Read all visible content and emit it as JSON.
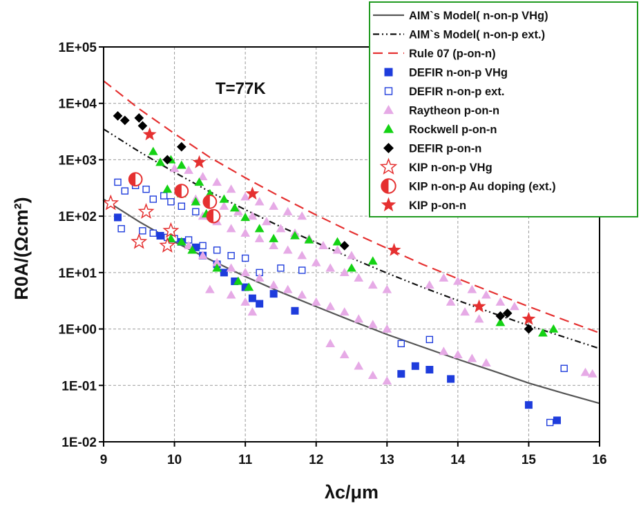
{
  "chart_data": {
    "type": "scatter",
    "title": "",
    "annotation": "T=77K",
    "xlabel": "λc/μm",
    "ylabel": "R0A/(Ωcm²)",
    "xlim": [
      9,
      16
    ],
    "ylim_log10": [
      -2,
      5
    ],
    "y_scale": "log",
    "grid": true,
    "legend_position": "top-right",
    "x_ticks": [
      "9",
      "10",
      "11",
      "12",
      "13",
      "14",
      "15",
      "16"
    ],
    "y_ticks": [
      "1E-02",
      "1E-01",
      "1E+00",
      "1E+01",
      "1E+02",
      "1E+03",
      "1E+04",
      "1E+05"
    ],
    "series": [
      {
        "name": "AIM`s Model( n-on-p VHg)",
        "kind": "line",
        "style": "solid",
        "color": "#555555",
        "points": [
          [
            9,
            200
          ],
          [
            9.5,
            80
          ],
          [
            10,
            35
          ],
          [
            10.5,
            17
          ],
          [
            11,
            8.5
          ],
          [
            11.5,
            4.5
          ],
          [
            12,
            2.5
          ],
          [
            12.5,
            1.4
          ],
          [
            13,
            0.8
          ],
          [
            13.5,
            0.48
          ],
          [
            14,
            0.29
          ],
          [
            14.5,
            0.18
          ],
          [
            15,
            0.11
          ],
          [
            15.5,
            0.072
          ],
          [
            16,
            0.048
          ]
        ]
      },
      {
        "name": "AIM`s Model( n-on-p ext.)",
        "kind": "line",
        "style": "dashdotdot",
        "color": "#111111",
        "points": [
          [
            9,
            3500
          ],
          [
            9.5,
            1400
          ],
          [
            10,
            600
          ],
          [
            10.5,
            270
          ],
          [
            11,
            130
          ],
          [
            11.5,
            65
          ],
          [
            12,
            34
          ],
          [
            12.5,
            18
          ],
          [
            13,
            9.8
          ],
          [
            13.5,
            5.5
          ],
          [
            14,
            3.2
          ],
          [
            14.5,
            1.9
          ],
          [
            15,
            1.15
          ],
          [
            15.5,
            0.72
          ],
          [
            16,
            0.45
          ]
        ]
      },
      {
        "name": "Rule 07 (p-on-n)",
        "kind": "line",
        "style": "dash",
        "color": "#e53030",
        "points": [
          [
            9,
            25000
          ],
          [
            9.5,
            8000
          ],
          [
            10,
            2900
          ],
          [
            10.5,
            1100
          ],
          [
            11,
            480
          ],
          [
            11.5,
            220
          ],
          [
            12,
            105
          ],
          [
            12.5,
            52
          ],
          [
            13,
            27
          ],
          [
            13.5,
            14
          ],
          [
            14,
            7.8
          ],
          [
            14.5,
            4.4
          ],
          [
            15,
            2.5
          ],
          [
            15.5,
            1.45
          ],
          [
            16,
            0.85
          ]
        ]
      },
      {
        "name": "DEFIR n-on-p VHg",
        "kind": "scatter",
        "marker": "square",
        "color": "#1e3cdc",
        "points": [
          [
            9.2,
            95
          ],
          [
            9.8,
            45
          ],
          [
            9.95,
            40
          ],
          [
            10.1,
            35
          ],
          [
            10.3,
            28
          ],
          [
            10.4,
            20
          ],
          [
            10.6,
            14
          ],
          [
            10.7,
            10
          ],
          [
            10.85,
            7
          ],
          [
            11.0,
            5.5
          ],
          [
            11.1,
            3.5
          ],
          [
            11.2,
            2.8
          ],
          [
            11.4,
            4.2
          ],
          [
            11.7,
            2.1
          ],
          [
            13.2,
            0.16
          ],
          [
            13.4,
            0.22
          ],
          [
            13.6,
            0.19
          ],
          [
            13.9,
            0.13
          ],
          [
            15.0,
            0.045
          ],
          [
            15.4,
            0.024
          ]
        ]
      },
      {
        "name": "DEFIR n-on-p ext.",
        "kind": "scatter",
        "marker": "square-open",
        "color": "#1e3cdc",
        "points": [
          [
            9.2,
            400
          ],
          [
            9.3,
            280
          ],
          [
            9.45,
            350
          ],
          [
            9.6,
            300
          ],
          [
            9.7,
            200
          ],
          [
            9.85,
            230
          ],
          [
            9.95,
            180
          ],
          [
            10.1,
            150
          ],
          [
            10.3,
            120
          ],
          [
            10.5,
            100
          ],
          [
            9.25,
            60
          ],
          [
            9.55,
            55
          ],
          [
            9.7,
            50
          ],
          [
            9.9,
            42
          ],
          [
            10.0,
            40
          ],
          [
            10.2,
            38
          ],
          [
            10.4,
            30
          ],
          [
            10.6,
            25
          ],
          [
            10.8,
            20
          ],
          [
            11.0,
            18
          ],
          [
            11.2,
            10
          ],
          [
            11.5,
            12
          ],
          [
            11.8,
            11
          ],
          [
            13.2,
            0.55
          ],
          [
            13.6,
            0.65
          ],
          [
            15.3,
            0.022
          ],
          [
            15.5,
            0.2
          ]
        ]
      },
      {
        "name": "Raytheon p-on-n",
        "kind": "scatter",
        "marker": "triangle",
        "color": "#e6aae6",
        "points": [
          [
            10.0,
            700
          ],
          [
            10.2,
            650
          ],
          [
            10.4,
            500
          ],
          [
            10.6,
            400
          ],
          [
            10.8,
            300
          ],
          [
            11.0,
            220
          ],
          [
            11.2,
            180
          ],
          [
            11.4,
            150
          ],
          [
            11.6,
            120
          ],
          [
            11.8,
            100
          ],
          [
            10.3,
            200
          ],
          [
            10.5,
            180
          ],
          [
            10.7,
            150
          ],
          [
            10.9,
            120
          ],
          [
            11.1,
            100
          ],
          [
            11.3,
            80
          ],
          [
            11.5,
            60
          ],
          [
            11.7,
            50
          ],
          [
            11.9,
            40
          ],
          [
            12.1,
            30
          ],
          [
            12.3,
            25
          ],
          [
            12.5,
            20
          ],
          [
            10.4,
            100
          ],
          [
            10.6,
            80
          ],
          [
            10.8,
            60
          ],
          [
            11.0,
            50
          ],
          [
            11.2,
            40
          ],
          [
            11.4,
            30
          ],
          [
            11.6,
            25
          ],
          [
            11.8,
            20
          ],
          [
            12.0,
            15
          ],
          [
            12.2,
            12
          ],
          [
            12.4,
            10
          ],
          [
            12.6,
            8
          ],
          [
            12.8,
            6
          ],
          [
            13.0,
            5
          ],
          [
            10.2,
            30
          ],
          [
            10.4,
            20
          ],
          [
            10.6,
            15
          ],
          [
            10.8,
            12
          ],
          [
            11.0,
            10
          ],
          [
            11.2,
            8
          ],
          [
            11.4,
            6
          ],
          [
            11.6,
            5
          ],
          [
            11.8,
            4
          ],
          [
            12.0,
            3
          ],
          [
            12.2,
            2.5
          ],
          [
            12.4,
            2
          ],
          [
            12.6,
            1.5
          ],
          [
            12.8,
            1.2
          ],
          [
            13.0,
            1
          ],
          [
            10.5,
            5
          ],
          [
            10.8,
            4
          ],
          [
            11.0,
            3
          ],
          [
            11.1,
            2
          ],
          [
            12.2,
            0.55
          ],
          [
            12.4,
            0.35
          ],
          [
            12.6,
            0.22
          ],
          [
            12.8,
            0.15
          ],
          [
            13.0,
            0.12
          ],
          [
            13.6,
            6
          ],
          [
            13.8,
            8
          ],
          [
            14.0,
            7
          ],
          [
            14.2,
            5
          ],
          [
            14.4,
            4
          ],
          [
            14.6,
            3
          ],
          [
            14.8,
            2.5
          ],
          [
            13.9,
            3
          ],
          [
            14.1,
            2
          ],
          [
            14.3,
            1.5
          ],
          [
            13.8,
            0.4
          ],
          [
            14.0,
            0.35
          ],
          [
            14.2,
            0.3
          ],
          [
            14.4,
            0.25
          ],
          [
            15.8,
            0.17
          ],
          [
            15.9,
            0.16
          ]
        ]
      },
      {
        "name": "Rockwell p-on-n",
        "kind": "scatter",
        "marker": "triangle",
        "color": "#14d214",
        "points": [
          [
            9.7,
            1400
          ],
          [
            9.8,
            900
          ],
          [
            9.95,
            1000
          ],
          [
            10.1,
            800
          ],
          [
            10.35,
            400
          ],
          [
            10.5,
            250
          ],
          [
            10.7,
            200
          ],
          [
            10.85,
            140
          ],
          [
            11.0,
            95
          ],
          [
            11.2,
            60
          ],
          [
            11.4,
            40
          ],
          [
            9.9,
            300
          ],
          [
            10.1,
            250
          ],
          [
            10.3,
            180
          ],
          [
            10.45,
            110
          ],
          [
            9.95,
            40
          ],
          [
            10.1,
            35
          ],
          [
            10.25,
            25
          ],
          [
            10.6,
            12
          ],
          [
            10.9,
            7
          ],
          [
            11.05,
            5.5
          ],
          [
            11.7,
            45
          ],
          [
            11.9,
            38
          ],
          [
            12.3,
            35
          ],
          [
            12.5,
            12
          ],
          [
            12.8,
            16
          ],
          [
            14.6,
            1.3
          ],
          [
            15.2,
            0.85
          ],
          [
            15.35,
            1.0
          ]
        ]
      },
      {
        "name": "DEFIR p-on-n",
        "kind": "scatter",
        "marker": "diamond",
        "color": "#000000",
        "points": [
          [
            9.2,
            6000
          ],
          [
            9.3,
            5000
          ],
          [
            9.5,
            5500
          ],
          [
            9.55,
            4000
          ],
          [
            9.9,
            1000
          ],
          [
            10.1,
            1700
          ],
          [
            12.4,
            30
          ],
          [
            14.6,
            1.7
          ],
          [
            14.7,
            1.9
          ],
          [
            15.0,
            1.0
          ]
        ]
      },
      {
        "name": "KIP n-on-p VHg",
        "kind": "scatter",
        "marker": "star-open",
        "color": "#e53030",
        "points": [
          [
            9.1,
            170
          ],
          [
            9.5,
            35
          ],
          [
            9.6,
            120
          ],
          [
            9.9,
            30
          ],
          [
            9.95,
            55
          ]
        ]
      },
      {
        "name": "KIP n-on-p Au doping (ext.)",
        "kind": "scatter",
        "marker": "halfcircle",
        "color": "#e53030",
        "points": [
          [
            9.45,
            450
          ],
          [
            10.1,
            280
          ],
          [
            10.5,
            180
          ],
          [
            10.55,
            100
          ]
        ]
      },
      {
        "name": "KIP p-on-n",
        "kind": "scatter",
        "marker": "star",
        "color": "#e53030",
        "points": [
          [
            9.65,
            2800
          ],
          [
            10.35,
            900
          ],
          [
            11.1,
            250
          ],
          [
            13.1,
            25
          ],
          [
            14.3,
            2.5
          ],
          [
            15.0,
            1.5
          ]
        ]
      }
    ]
  }
}
